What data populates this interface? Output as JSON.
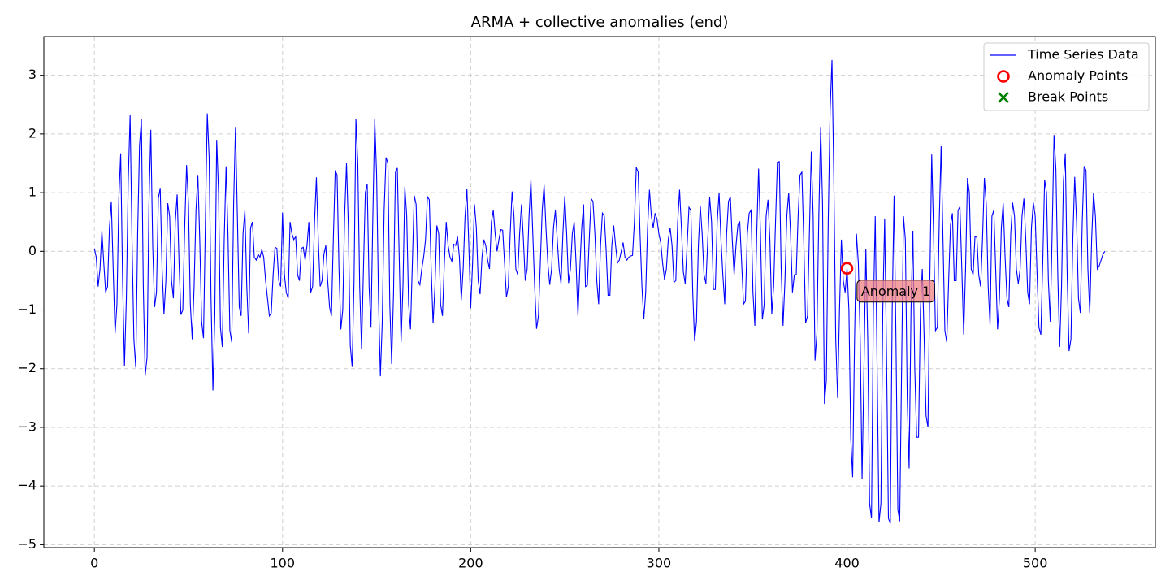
{
  "chart_data": {
    "type": "line",
    "title": "ARMA + collective anomalies (end)",
    "xlim": [
      -26.85,
      563.85
    ],
    "ylim": [
      -5.05,
      3.66
    ],
    "xticks": [
      0,
      100,
      200,
      300,
      400,
      500
    ],
    "yticks": [
      -5,
      -4,
      -3,
      -2,
      -1,
      0,
      1,
      2,
      3
    ],
    "grid": true,
    "legend": "upper right",
    "annotations": [
      {
        "text": "Anomaly 1",
        "x": 400,
        "y": -0.29
      }
    ],
    "series": [
      {
        "name": "Time Series Data",
        "color": "#0000ff",
        "marker": "line",
        "x": [
          0,
          1,
          2,
          3,
          4,
          5,
          6,
          7,
          8,
          9,
          10,
          11,
          12,
          13,
          14,
          15,
          16,
          17,
          18,
          19,
          20,
          21,
          22,
          23,
          24,
          25,
          26,
          27,
          28,
          29,
          30,
          31,
          32,
          33,
          34,
          35,
          36,
          37,
          38,
          39,
          40,
          41,
          42,
          43,
          44,
          45,
          46,
          47,
          48,
          49,
          50,
          51,
          52,
          53,
          54,
          55,
          56,
          57,
          58,
          59,
          60,
          61,
          62,
          63,
          64,
          65,
          66,
          67,
          68,
          69,
          70,
          71,
          72,
          73,
          74,
          75,
          76,
          77,
          78,
          79,
          80,
          81,
          82,
          83,
          84,
          85,
          86,
          87,
          88,
          89,
          90,
          91,
          92,
          93,
          94,
          95,
          96,
          97,
          98,
          99,
          100,
          101,
          102,
          103,
          104,
          105,
          106,
          107,
          108,
          109,
          110,
          111,
          112,
          113,
          114,
          115,
          116,
          117,
          118,
          119,
          120,
          121,
          122,
          123,
          124,
          125,
          126,
          127,
          128,
          129,
          130,
          131,
          132,
          133,
          134,
          135,
          136,
          137,
          138,
          139,
          140,
          141,
          142,
          143,
          144,
          145,
          146,
          147,
          148,
          149,
          150,
          151,
          152,
          153,
          154,
          155,
          156,
          157,
          158,
          159,
          160,
          161,
          162,
          163,
          164,
          165,
          166,
          167,
          168,
          169,
          170,
          171,
          172,
          173,
          174,
          175,
          176,
          177,
          178,
          179,
          180,
          181,
          182,
          183,
          184,
          185,
          186,
          187,
          188,
          189,
          190,
          191,
          192,
          193,
          194,
          195,
          196,
          197,
          198,
          199,
          200,
          201,
          202,
          203,
          204,
          205,
          206,
          207,
          208,
          209,
          210,
          211,
          212,
          213,
          214,
          215,
          216,
          217,
          218,
          219,
          220,
          221,
          222,
          223,
          224,
          225,
          226,
          227,
          228,
          229,
          230,
          231,
          232,
          233,
          234,
          235,
          236,
          237,
          238,
          239,
          240,
          241,
          242,
          243,
          244,
          245,
          246,
          247,
          248,
          249,
          250,
          251,
          252,
          253,
          254,
          255,
          256,
          257,
          258,
          259,
          260,
          261,
          262,
          263,
          264,
          265,
          266,
          267,
          268,
          269,
          270,
          271,
          272,
          273,
          274,
          275,
          276,
          277,
          278,
          279,
          280,
          281,
          282,
          283,
          284,
          285,
          286,
          287,
          288,
          289,
          290,
          291,
          292,
          293,
          294,
          295,
          296,
          297,
          298,
          299,
          300,
          301,
          302,
          303,
          304,
          305,
          306,
          307,
          308,
          309,
          310,
          311,
          312,
          313,
          314,
          315,
          316,
          317,
          318,
          319,
          320,
          321,
          322,
          323,
          324,
          325,
          326,
          327,
          328,
          329,
          330,
          331,
          332,
          333,
          334,
          335,
          336,
          337,
          338,
          339,
          340,
          341,
          342,
          343,
          344,
          345,
          346,
          347,
          348,
          349,
          350,
          351,
          352,
          353,
          354,
          355,
          356,
          357,
          358,
          359,
          360,
          361,
          362,
          363,
          364,
          365,
          366,
          367,
          368,
          369,
          370,
          371,
          372,
          373,
          374,
          375,
          376,
          377,
          378,
          379,
          380,
          381,
          382,
          383,
          384,
          385,
          386,
          387,
          388,
          389,
          390,
          391,
          392,
          393,
          394,
          395,
          396,
          397,
          398,
          399,
          400,
          401,
          402,
          403,
          404,
          405,
          406,
          407,
          408,
          409,
          410,
          411,
          412,
          413,
          414,
          415,
          416,
          417,
          418,
          419,
          420,
          421,
          422,
          423,
          424,
          425,
          426,
          427,
          428,
          429,
          430,
          431,
          432,
          433,
          434,
          435,
          436,
          437,
          438,
          439,
          440,
          441,
          442,
          443,
          444,
          445,
          446,
          447,
          448,
          449,
          450,
          451,
          452,
          453,
          454,
          455,
          456,
          457,
          458,
          459,
          460,
          461,
          462,
          463,
          464,
          465,
          466,
          467,
          468,
          469,
          470,
          471,
          472,
          473,
          474,
          475,
          476,
          477,
          478,
          479,
          480,
          481,
          482,
          483,
          484,
          485,
          486,
          487,
          488,
          489,
          490,
          491,
          492,
          493,
          494,
          495,
          496,
          497,
          498,
          499,
          500,
          501,
          502,
          503,
          504,
          505,
          506,
          507,
          508,
          509,
          510,
          511,
          512,
          513,
          514,
          515,
          516,
          517,
          518,
          519,
          520,
          521,
          522,
          523,
          524,
          525,
          526,
          527,
          528,
          529,
          530,
          531,
          532,
          533,
          534,
          535,
          536,
          537
        ],
        "values": [
          0.05,
          -0.1,
          -0.6,
          -0.3,
          0.35,
          -0.2,
          -0.7,
          -0.6,
          0.4,
          0.85,
          -0.3,
          -1.4,
          -0.9,
          0.9,
          1.67,
          -0.5,
          -1.95,
          -0.8,
          1.2,
          2.32,
          0.2,
          -1.5,
          -1.98,
          0.3,
          1.8,
          2.25,
          -0.6,
          -2.12,
          -1.8,
          0.8,
          2.07,
          0.1,
          -0.95,
          -0.7,
          0.9,
          1.08,
          -0.3,
          -1.07,
          -0.5,
          0.82,
          0.6,
          -0.5,
          -0.8,
          0.5,
          0.97,
          -0.2,
          -1.08,
          -1.0,
          0.4,
          1.47,
          0.8,
          -0.9,
          -1.5,
          -0.6,
          0.7,
          1.3,
          0.2,
          -1.2,
          -1.48,
          0.5,
          2.35,
          1.6,
          -0.8,
          -2.37,
          -1.1,
          1.9,
          1.0,
          -1.3,
          -1.63,
          0.2,
          1.45,
          0.3,
          -1.35,
          -1.55,
          0.8,
          2.12,
          0.6,
          -0.95,
          -1.1,
          0.3,
          0.7,
          -0.6,
          -1.4,
          0.4,
          0.5,
          -0.1,
          -0.15,
          -0.05,
          -0.1,
          0.03,
          -0.1,
          -0.5,
          -0.8,
          -1.1,
          -1.05,
          -0.4,
          0.07,
          0.05,
          -0.5,
          -0.6,
          0.66,
          -0.4,
          -0.7,
          -0.8,
          0.5,
          0.3,
          0.2,
          0.25,
          -0.4,
          -0.5,
          0.05,
          0.07,
          -0.15,
          0.1,
          0.5,
          -0.7,
          -0.6,
          0.5,
          1.26,
          0.2,
          -0.6,
          -0.5,
          -0.05,
          0.1,
          -0.5,
          -0.95,
          -1.1,
          0.2,
          1.38,
          1.3,
          -0.3,
          -1.33,
          -1.0,
          0.6,
          1.5,
          0.4,
          -1.6,
          -1.97,
          -0.5,
          2.26,
          1.5,
          -0.6,
          -1.67,
          -0.3,
          1.0,
          1.15,
          -0.6,
          -1.3,
          0.6,
          2.25,
          1.3,
          -0.8,
          -2.13,
          -1.2,
          0.7,
          1.6,
          1.5,
          -0.9,
          -1.92,
          -0.7,
          1.35,
          1.42,
          -0.1,
          -1.55,
          -0.6,
          1.1,
          0.6,
          -0.9,
          -1.33,
          -0.2,
          0.95,
          0.8,
          -0.5,
          -0.57,
          -0.3,
          -0.1,
          0.2,
          0.93,
          0.88,
          -0.3,
          -1.23,
          -0.6,
          0.44,
          0.3,
          -0.9,
          -1.1,
          -0.2,
          0.5,
          0.1,
          -0.1,
          -0.17,
          0.12,
          0.1,
          0.25,
          -0.1,
          -0.83,
          -0.3,
          0.6,
          1.06,
          0.1,
          -0.97,
          -0.2,
          0.8,
          0.4,
          -0.5,
          -0.73,
          -0.1,
          0.2,
          0.1,
          -0.15,
          -0.3,
          0.5,
          0.7,
          0.3,
          0.0,
          0.2,
          0.37,
          0.36,
          -0.2,
          -0.78,
          -0.6,
          0.3,
          1.02,
          0.6,
          -0.3,
          -0.4,
          0.3,
          0.8,
          0.2,
          -0.5,
          -0.3,
          0.6,
          1.22,
          0.3,
          -0.6,
          -1.32,
          -1.1,
          -0.2,
          0.7,
          1.13,
          0.4,
          -0.2,
          -0.57,
          -0.3,
          0.4,
          0.7,
          0.2,
          -0.3,
          -0.55,
          0.3,
          0.94,
          0.3,
          -0.54,
          -0.3,
          0.3,
          0.5,
          -0.2,
          -1.1,
          -0.3,
          0.4,
          0.8,
          -0.6,
          -0.58,
          0.2,
          0.9,
          0.85,
          0.3,
          -0.5,
          -0.9,
          0.1,
          0.65,
          0.6,
          0.0,
          -0.75,
          -0.75,
          0.1,
          0.44,
          0.1,
          -0.2,
          -0.15,
          0.0,
          0.15,
          -0.1,
          -0.15,
          -0.1,
          -0.08,
          -0.07,
          0.5,
          1.43,
          1.35,
          0.3,
          -0.6,
          -1.16,
          -0.7,
          0.4,
          1.05,
          0.6,
          0.4,
          0.65,
          0.55,
          0.3,
          0.15,
          -0.2,
          -0.48,
          -0.3,
          0.2,
          0.4,
          0.1,
          -0.53,
          -0.5,
          0.5,
          1.05,
          0.4,
          -0.35,
          -0.55,
          0.1,
          0.75,
          0.7,
          -0.7,
          -1.53,
          -1.2,
          0.1,
          0.78,
          0.3,
          -0.4,
          -0.55,
          0.2,
          0.92,
          0.5,
          -0.65,
          -0.65,
          0.5,
          1.0,
          0.2,
          -0.4,
          -0.9,
          0.3,
          0.85,
          0.93,
          0.2,
          -0.4,
          0.1,
          0.45,
          0.5,
          -0.2,
          -0.9,
          -0.85,
          0.3,
          0.65,
          0.7,
          -0.7,
          -1.27,
          0.3,
          1.41,
          0.3,
          -1.16,
          -0.9,
          0.6,
          0.88,
          0.2,
          -1.07,
          -0.6,
          0.5,
          1.52,
          1.53,
          -0.3,
          -1.27,
          -0.5,
          0.6,
          1.0,
          0.3,
          -0.7,
          -0.4,
          -0.4,
          0.6,
          1.3,
          1.35,
          0.2,
          -1.22,
          -1.1,
          0.3,
          1.7,
          0.6,
          -1.86,
          -1.4,
          0.6,
          2.12,
          0.8,
          -2.6,
          -2.2,
          0.5,
          2.4,
          3.26,
          1.2,
          -1.5,
          -2.5,
          -1.0,
          0.2,
          -0.5,
          -0.7,
          -0.29,
          -1.0,
          -3.2,
          -3.85,
          -1.5,
          0.3,
          -0.2,
          -1.5,
          -3.88,
          -2.0,
          0.04,
          -1.5,
          -4.3,
          -4.55,
          -1.0,
          0.6,
          -2.0,
          -4.62,
          -4.3,
          -1.0,
          0.56,
          -1.8,
          -4.55,
          -4.64,
          -1.0,
          0.95,
          -1.5,
          -4.4,
          -4.6,
          -2.0,
          0.6,
          0.2,
          -2.5,
          -3.7,
          -1.0,
          0.35,
          -2.0,
          -3.17,
          -3.17,
          -1.0,
          -0.3,
          -1.5,
          -2.8,
          -3.0,
          -0.5,
          1.65,
          0.3,
          -1.35,
          -1.3,
          0.5,
          1.79,
          0.2,
          -1.35,
          -1.55,
          -0.5,
          0.45,
          0.65,
          -0.5,
          -0.5,
          0.7,
          0.76,
          -0.3,
          -1.42,
          -0.3,
          1.25,
          1.0,
          -0.3,
          -0.4,
          0.25,
          0.24,
          -0.4,
          -0.6,
          0.2,
          1.25,
          0.8,
          -0.6,
          -1.25,
          0.6,
          0.7,
          -0.3,
          -1.33,
          -0.8,
          0.4,
          0.82,
          -0.1,
          -0.8,
          -0.95,
          0.3,
          0.83,
          0.6,
          -0.3,
          -0.55,
          -0.3,
          0.6,
          0.9,
          0.2,
          -0.7,
          -0.9,
          0.4,
          0.83,
          0.6,
          -0.4,
          -1.3,
          -1.42,
          -0.2,
          1.22,
          1.0,
          -0.5,
          -1.2,
          0.3,
          1.98,
          1.4,
          -0.4,
          -1.63,
          -0.6,
          1.2,
          1.67,
          -0.4,
          -1.7,
          -1.5,
          0.2,
          1.27,
          0.5,
          -0.8,
          -1.05,
          0.5,
          1.45,
          1.38,
          -0.3,
          -1.05,
          0.2,
          1.0,
          0.6,
          -0.3,
          -0.25,
          -0.15,
          -0.05,
          0.0
        ]
      },
      {
        "name": "Anomaly Points",
        "color": "#ff0000",
        "marker": "o",
        "x": [
          400
        ],
        "values": [
          -0.29
        ]
      },
      {
        "name": "Break Points",
        "color": "#008000",
        "marker": "x",
        "x": [],
        "values": []
      }
    ]
  }
}
